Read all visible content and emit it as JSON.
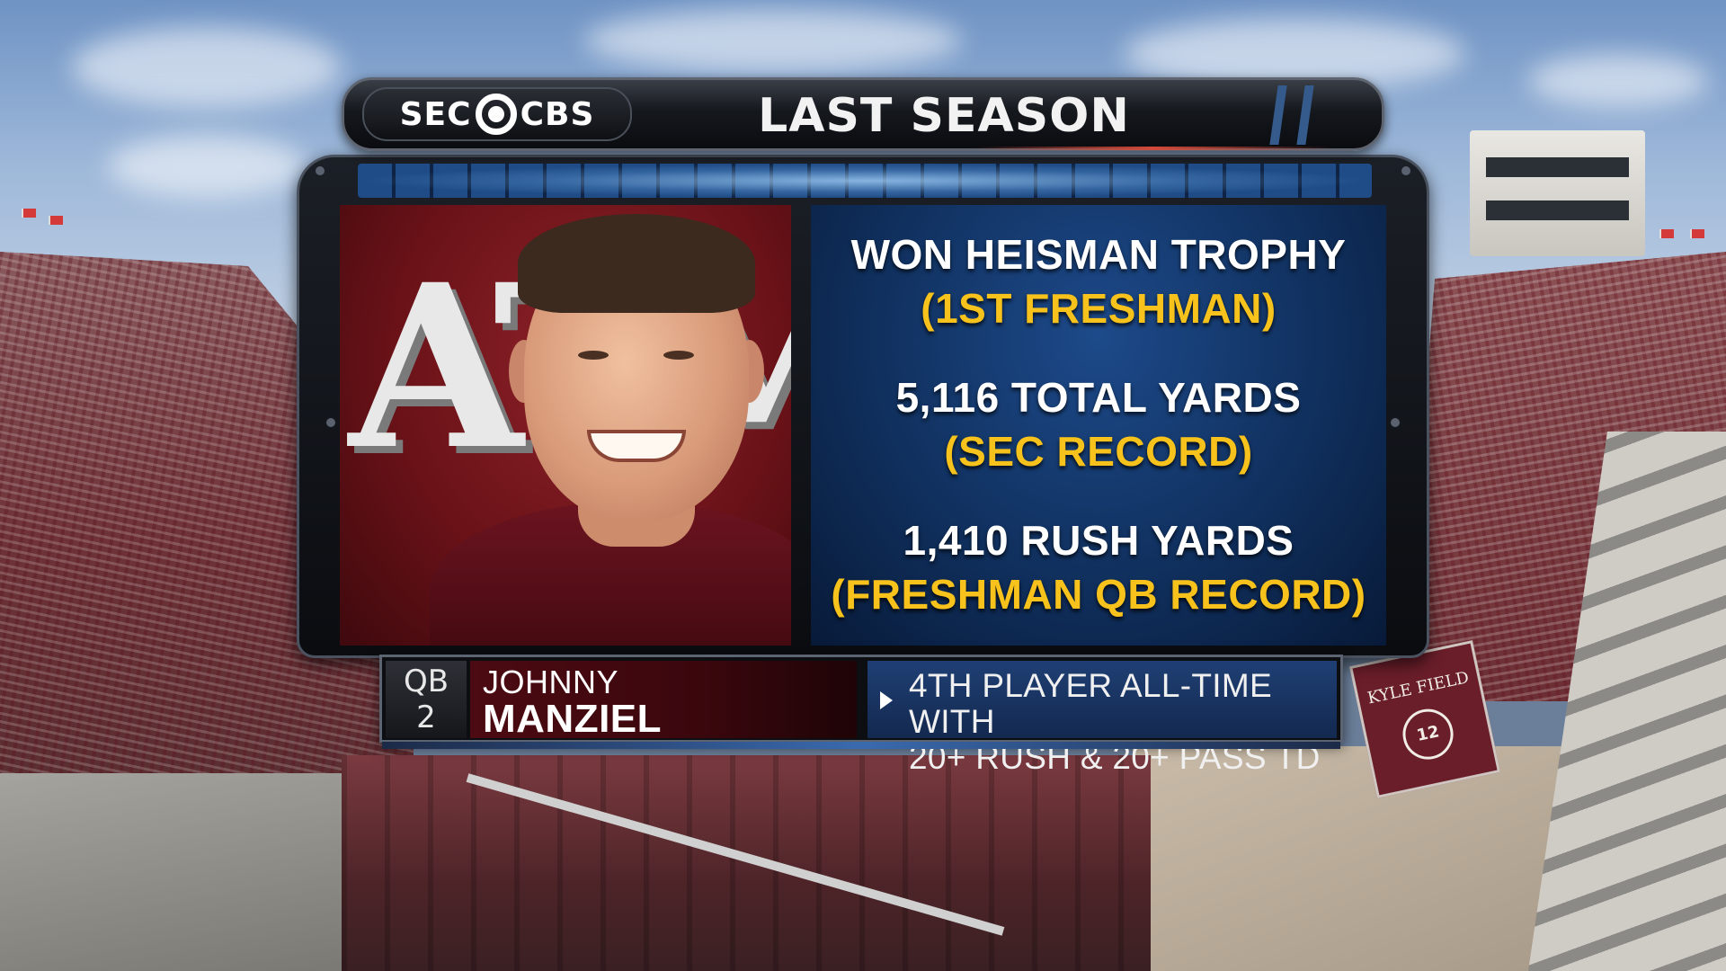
{
  "header": {
    "logo_left": "SEC",
    "logo_right": "CBS",
    "title": "LAST SEASON"
  },
  "photo": {
    "logo_text": "ATM",
    "subject": "player headshot"
  },
  "stats": [
    {
      "main": "WON HEISMAN TROPHY",
      "sub": "(1ST FRESHMAN)"
    },
    {
      "main": "5,116 TOTAL YARDS",
      "sub": "(SEC RECORD)"
    },
    {
      "main": "1,410 RUSH YARDS",
      "sub": "(FRESHMAN QB RECORD)"
    }
  ],
  "player": {
    "position": "QB",
    "number": "2",
    "first_name": "JOHNNY",
    "last_name": "MANZIEL"
  },
  "note": {
    "line1": "4TH PLAYER ALL-TIME WITH",
    "line2": "20+ RUSH & 20+ PASS TD"
  },
  "background": {
    "banner_text": "KYLE FIELD",
    "banner_number": "12"
  },
  "colors": {
    "maroon": "#500000",
    "stat_yellow": "#F7C21C",
    "panel_blue": "#10305E"
  }
}
